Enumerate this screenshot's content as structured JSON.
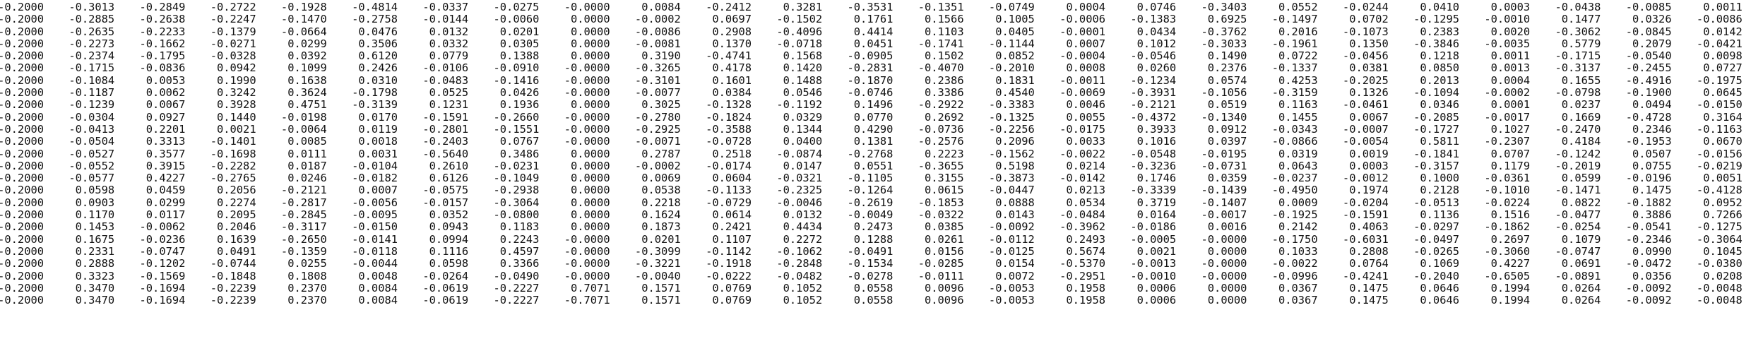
{
  "rows": [
    [
      "-0.2000",
      "-0.3013",
      "-0.2849",
      "-0.2722",
      "-0.1928",
      "-0.4814",
      "-0.0337",
      "-0.0275",
      "-0.0000",
      "0.0084",
      "-0.2412",
      "0.3281",
      "-0.3531",
      "-0.1351",
      "-0.0749",
      "0.0004",
      "0.0746",
      "-0.3403",
      "0.0552",
      "-0.0244",
      "0.0410",
      "0.0003",
      "-0.0438",
      "-0.0085",
      "0.0011"
    ],
    [
      "-0.2000",
      "-0.2885",
      "-0.2638",
      "-0.2247",
      "-0.1470",
      "-0.2758",
      "-0.0144",
      "-0.0060",
      "0.0000",
      "-0.0002",
      "0.0697",
      "-0.1502",
      "0.1761",
      "0.1566",
      "0.1005",
      "-0.0006",
      "-0.1383",
      "0.6925",
      "-0.1497",
      "0.0702",
      "-0.1295",
      "-0.0010",
      "0.1477",
      "0.0326",
      "-0.0086"
    ],
    [
      "-0.2000",
      "-0.2635",
      "-0.2233",
      "-0.1379",
      "-0.0664",
      "0.0476",
      "0.0132",
      "0.0201",
      "0.0000",
      "-0.0086",
      "0.2908",
      "-0.4096",
      "0.4414",
      "0.1103",
      "0.0405",
      "-0.0001",
      "0.0434",
      "-0.3762",
      "0.2016",
      "-0.1073",
      "0.2383",
      "0.0020",
      "-0.3062",
      "-0.0845",
      "0.0142"
    ],
    [
      "-0.2000",
      "-0.2273",
      "-0.1662",
      "-0.0271",
      "0.0299",
      "0.3506",
      "0.0332",
      "0.0305",
      "0.0000",
      "-0.0081",
      "0.1370",
      "-0.0718",
      "0.0451",
      "-0.1741",
      "-0.1144",
      "0.0007",
      "0.1012",
      "-0.3033",
      "-0.1961",
      "0.1350",
      "-0.3846",
      "-0.0035",
      "0.5779",
      "0.2079",
      "-0.0421"
    ],
    [
      "-0.2000",
      "-0.2374",
      "-0.1795",
      "-0.0328",
      "0.0392",
      "0.6120",
      "0.0779",
      "0.1388",
      "0.0000",
      "0.3190",
      "-0.4741",
      "0.1568",
      "-0.0905",
      "0.1502",
      "0.0852",
      "-0.0004",
      "-0.0546",
      "0.1490",
      "0.0722",
      "-0.0456",
      "0.1218",
      "0.0011",
      "-0.1715",
      "-0.0540",
      "0.0098"
    ],
    [
      "-0.2000",
      "-0.1715",
      "-0.0836",
      "0.0942",
      "0.1099",
      "0.2426",
      "-0.0106",
      "-0.0910",
      "-0.0000",
      "-0.3265",
      "0.4178",
      "0.1420",
      "-0.2831",
      "-0.4070",
      "-0.2010",
      "0.0008",
      "0.0260",
      "0.2376",
      "-0.1337",
      "0.0381",
      "0.0850",
      "0.0013",
      "-0.3137",
      "-0.2455",
      "0.0727"
    ],
    [
      "-0.2000",
      "-0.1084",
      "0.0053",
      "0.1990",
      "0.1638",
      "0.0310",
      "-0.0483",
      "-0.1416",
      "-0.0000",
      "-0.3101",
      "0.1601",
      "0.1488",
      "-0.1870",
      "0.2386",
      "0.1831",
      "-0.0011",
      "-0.1234",
      "0.0574",
      "0.4253",
      "-0.2025",
      "0.2013",
      "0.0004",
      "0.1655",
      "-0.4916",
      "-0.1975"
    ],
    [
      "-0.2000",
      "-0.1187",
      "0.0062",
      "0.3242",
      "0.3624",
      "-0.1798",
      "0.0525",
      "0.0426",
      "-0.0000",
      "-0.0077",
      "0.0384",
      "0.0546",
      "-0.0746",
      "0.3386",
      "0.4540",
      "-0.0069",
      "-0.3931",
      "-0.1056",
      "-0.3159",
      "0.1326",
      "-0.1094",
      "-0.0002",
      "-0.0798",
      "-0.1900",
      "0.0645"
    ],
    [
      "-0.2000",
      "-0.1239",
      "0.0067",
      "0.3928",
      "0.4751",
      "-0.3139",
      "0.1231",
      "0.1936",
      "0.0000",
      "0.3025",
      "-0.1328",
      "-0.1192",
      "0.1496",
      "-0.2922",
      "-0.3383",
      "0.0046",
      "-0.2121",
      "0.0519",
      "0.1163",
      "-0.0461",
      "0.0346",
      "0.0001",
      "0.0237",
      "0.0494",
      "-0.0150"
    ],
    [
      "-0.2000",
      "-0.0304",
      "0.0927",
      "0.1440",
      "-0.0198",
      "0.0170",
      "-0.1591",
      "-0.2660",
      "-0.0000",
      "-0.2780",
      "-0.1824",
      "0.0329",
      "0.0770",
      "0.2692",
      "-0.1325",
      "0.0055",
      "-0.4372",
      "-0.1340",
      "0.1455",
      "0.0067",
      "-0.2085",
      "-0.0017",
      "0.1669",
      "-0.4728",
      "0.3164"
    ],
    [
      "-0.2000",
      "-0.0413",
      "0.2201",
      "0.0021",
      "-0.0064",
      "0.0119",
      "-0.2801",
      "-0.1551",
      "-0.0000",
      "-0.2925",
      "-0.3588",
      "0.1344",
      "0.4290",
      "-0.0736",
      "-0.2256",
      "-0.0175",
      "0.3933",
      "0.0912",
      "-0.0343",
      "-0.0007",
      "-0.1727",
      "0.1027",
      "-0.2470",
      "0.2346",
      "-0.1163"
    ],
    [
      "-0.2000",
      "-0.0504",
      "0.3313",
      "-0.1401",
      "0.0085",
      "0.0018",
      "-0.2403",
      "0.0767",
      "-0.0000",
      "-0.0071",
      "-0.0728",
      "0.0400",
      "0.1381",
      "-0.2576",
      "0.2096",
      "0.0033",
      "0.1016",
      "0.0397",
      "-0.0866",
      "-0.0054",
      "0.5811",
      "-0.2307",
      "0.4184",
      "-0.1953",
      "0.0670"
    ],
    [
      "-0.2000",
      "-0.0527",
      "0.3577",
      "-0.1698",
      "0.0111",
      "0.0031",
      "-0.5640",
      "0.3486",
      "0.0000",
      "0.2787",
      "0.2518",
      "-0.0874",
      "-0.2768",
      "0.2223",
      "-0.1562",
      "-0.0022",
      "-0.0548",
      "-0.0195",
      "0.0319",
      "0.0019",
      "-0.1841",
      "0.0707",
      "-0.1242",
      "0.0507",
      "-0.0156"
    ],
    [
      "-0.2000",
      "-0.0552",
      "0.3915",
      "-0.2282",
      "0.0187",
      "-0.0104",
      "0.2610",
      "-0.0231",
      "0.0000",
      "-0.0002",
      "-0.0174",
      "0.0147",
      "0.0551",
      "-0.3655",
      "0.5198",
      "0.0214",
      "-0.3236",
      "-0.0731",
      "0.0643",
      "0.0003",
      "-0.3157",
      "0.1179",
      "-0.2019",
      "0.0755",
      "-0.0219"
    ],
    [
      "-0.2000",
      "-0.0577",
      "0.4227",
      "-0.2765",
      "0.0246",
      "-0.0182",
      "0.6126",
      "-0.1049",
      "0.0000",
      "0.0069",
      "0.0604",
      "-0.0321",
      "-0.1105",
      "0.3155",
      "-0.3873",
      "-0.0142",
      "0.1746",
      "0.0359",
      "-0.0237",
      "-0.0012",
      "0.1000",
      "-0.0361",
      "0.0599",
      "-0.0196",
      "0.0051"
    ],
    [
      "-0.2000",
      "0.0598",
      "0.0459",
      "0.2056",
      "-0.2121",
      "0.0007",
      "-0.0575",
      "-0.2938",
      "0.0000",
      "0.0538",
      "-0.1133",
      "-0.2325",
      "-0.1264",
      "0.0615",
      "-0.0447",
      "0.0213",
      "-0.3339",
      "-0.1439",
      "-0.4950",
      "0.1974",
      "0.2128",
      "-0.1010",
      "-0.1471",
      "0.1475",
      "-0.4128"
    ],
    [
      "-0.2000",
      "0.0903",
      "0.0299",
      "0.2274",
      "-0.2817",
      "-0.0056",
      "-0.0157",
      "-0.3064",
      "0.0000",
      "0.2218",
      "-0.0729",
      "-0.0046",
      "-0.2619",
      "-0.1853",
      "0.0888",
      "0.0534",
      "0.3719",
      "-0.1407",
      "0.0009",
      "-0.0204",
      "-0.0513",
      "-0.0224",
      "0.0822",
      "-0.1882",
      "0.0952"
    ],
    [
      "-0.2000",
      "0.1170",
      "0.0117",
      "0.2095",
      "-0.2845",
      "-0.0095",
      "0.0352",
      "-0.0800",
      "0.0000",
      "0.1624",
      "0.0614",
      "0.0132",
      "-0.0049",
      "-0.0322",
      "0.0143",
      "-0.0484",
      "0.0164",
      "-0.0017",
      "-0.1925",
      "-0.1591",
      "0.1136",
      "0.1516",
      "-0.0477",
      "0.3886",
      "0.7266"
    ],
    [
      "-0.2000",
      "0.1453",
      "-0.0062",
      "0.2046",
      "-0.3117",
      "-0.0150",
      "0.0943",
      "0.1183",
      "0.0000",
      "0.1873",
      "0.2421",
      "0.4434",
      "0.2473",
      "0.0385",
      "-0.0092",
      "-0.3962",
      "-0.0186",
      "0.0016",
      "0.2142",
      "0.4063",
      "-0.0297",
      "-0.1862",
      "-0.0254",
      "-0.0541",
      "-0.1275"
    ],
    [
      "-0.2000",
      "0.1675",
      "-0.0236",
      "0.1639",
      "-0.2650",
      "-0.0141",
      "0.0994",
      "0.2243",
      "-0.0000",
      "0.0201",
      "0.1107",
      "0.2272",
      "0.1288",
      "0.0261",
      "-0.0112",
      "0.2493",
      "-0.0005",
      "-0.0000",
      "-0.1750",
      "-0.6031",
      "-0.0497",
      "0.2697",
      "0.1079",
      "-0.2346",
      "-0.3064"
    ],
    [
      "-0.2000",
      "0.2331",
      "-0.0747",
      "0.0491",
      "-0.1359",
      "-0.0118",
      "0.1116",
      "0.4597",
      "-0.0000",
      "-0.3099",
      "-0.1142",
      "-0.1062",
      "-0.0491",
      "0.0156",
      "-0.0125",
      "0.5674",
      "0.0021",
      "0.0000",
      "0.1033",
      "0.2808",
      "-0.0265",
      "-0.3060",
      "-0.0747",
      "0.0990",
      "0.1045"
    ],
    [
      "-0.2000",
      "0.2888",
      "-0.1202",
      "-0.0744",
      "0.0255",
      "-0.0044",
      "0.0598",
      "0.3366",
      "-0.0000",
      "-0.3221",
      "-0.1918",
      "-0.2848",
      "-0.1534",
      "-0.0285",
      "0.0154",
      "-0.5370",
      "-0.0013",
      "-0.0000",
      "-0.0022",
      "0.0764",
      "0.1069",
      "0.4227",
      "0.0691",
      "-0.0472",
      "-0.0380"
    ],
    [
      "-0.2000",
      "0.3323",
      "-0.1569",
      "-0.1848",
      "0.1808",
      "0.0048",
      "-0.0264",
      "-0.0490",
      "-0.0000",
      "-0.0040",
      "-0.0222",
      "-0.0482",
      "-0.0278",
      "-0.0111",
      "0.0072",
      "-0.2951",
      "-0.0010",
      "-0.0000",
      "-0.0996",
      "-0.4241",
      "-0.2040",
      "-0.6505",
      "-0.0891",
      "0.0356",
      "0.0208"
    ],
    [
      "-0.2000",
      "0.3470",
      "-0.1694",
      "-0.2239",
      "0.2370",
      "0.0084",
      "-0.0619",
      "-0.2227",
      "0.7071",
      "0.1571",
      "0.0769",
      "0.1052",
      "0.0558",
      "0.0096",
      "-0.0053",
      "0.1958",
      "0.0006",
      "0.0000",
      "0.0367",
      "0.1475",
      "0.0646",
      "0.1994",
      "0.0264",
      "-0.0092",
      "-0.0048"
    ],
    [
      "-0.2000",
      "0.3470",
      "-0.1694",
      "-0.2239",
      "0.2370",
      "0.0084",
      "-0.0619",
      "-0.2227",
      "-0.7071",
      "0.1571",
      "0.0769",
      "0.1052",
      "0.0558",
      "0.0096",
      "-0.0053",
      "0.1958",
      "0.0006",
      "0.0000",
      "0.0367",
      "0.1475",
      "0.0646",
      "0.1994",
      "0.0264",
      "-0.0092",
      "-0.0048"
    ]
  ]
}
